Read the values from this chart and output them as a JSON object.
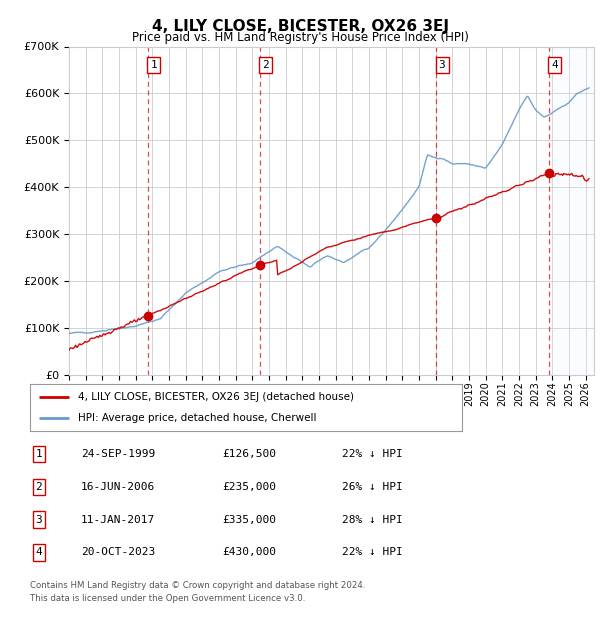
{
  "title": "4, LILY CLOSE, BICESTER, OX26 3EJ",
  "subtitle": "Price paid vs. HM Land Registry's House Price Index (HPI)",
  "footer1": "Contains HM Land Registry data © Crown copyright and database right 2024.",
  "footer2": "This data is licensed under the Open Government Licence v3.0.",
  "legend_label_red": "4, LILY CLOSE, BICESTER, OX26 3EJ (detached house)",
  "legend_label_blue": "HPI: Average price, detached house, Cherwell",
  "transactions": [
    {
      "num": 1,
      "label_date": "24-SEP-1999",
      "price": 126500,
      "price_label": "£126,500",
      "hpi_pct": "22% ↓ HPI",
      "x_year": 1999.73
    },
    {
      "num": 2,
      "label_date": "16-JUN-2006",
      "price": 235000,
      "price_label": "£235,000",
      "hpi_pct": "26% ↓ HPI",
      "x_year": 2006.46
    },
    {
      "num": 3,
      "label_date": "11-JAN-2017",
      "price": 335000,
      "price_label": "£335,000",
      "hpi_pct": "28% ↓ HPI",
      "x_year": 2017.03
    },
    {
      "num": 4,
      "label_date": "20-OCT-2023",
      "price": 430000,
      "price_label": "£430,000",
      "hpi_pct": "22% ↓ HPI",
      "x_year": 2023.8
    }
  ],
  "hpi_anchors_x": [
    1995.0,
    1997.0,
    1999.0,
    2000.5,
    2002.0,
    2004.0,
    2006.0,
    2007.5,
    2008.5,
    2009.5,
    2010.5,
    2011.5,
    2013.0,
    2014.5,
    2016.0,
    2016.5,
    2017.5,
    2018.0,
    2019.0,
    2020.0,
    2021.0,
    2022.0,
    2022.5,
    2023.0,
    2023.5,
    2024.0,
    2025.0,
    2025.5,
    2026.2
  ],
  "hpi_anchors_y": [
    88000,
    95000,
    105000,
    120000,
    175000,
    220000,
    240000,
    275000,
    250000,
    230000,
    255000,
    240000,
    270000,
    330000,
    400000,
    470000,
    460000,
    450000,
    450000,
    440000,
    490000,
    565000,
    595000,
    565000,
    550000,
    560000,
    580000,
    600000,
    610000
  ],
  "ylim": [
    0,
    700000
  ],
  "yticks": [
    0,
    100000,
    200000,
    300000,
    400000,
    500000,
    600000,
    700000
  ],
  "xlim_start": 1995.0,
  "xlim_end": 2026.5,
  "background_color": "#ffffff",
  "grid_color": "#cccccc",
  "red_color": "#cc0000",
  "blue_color": "#6699cc",
  "shade_color": "#ddeeff"
}
